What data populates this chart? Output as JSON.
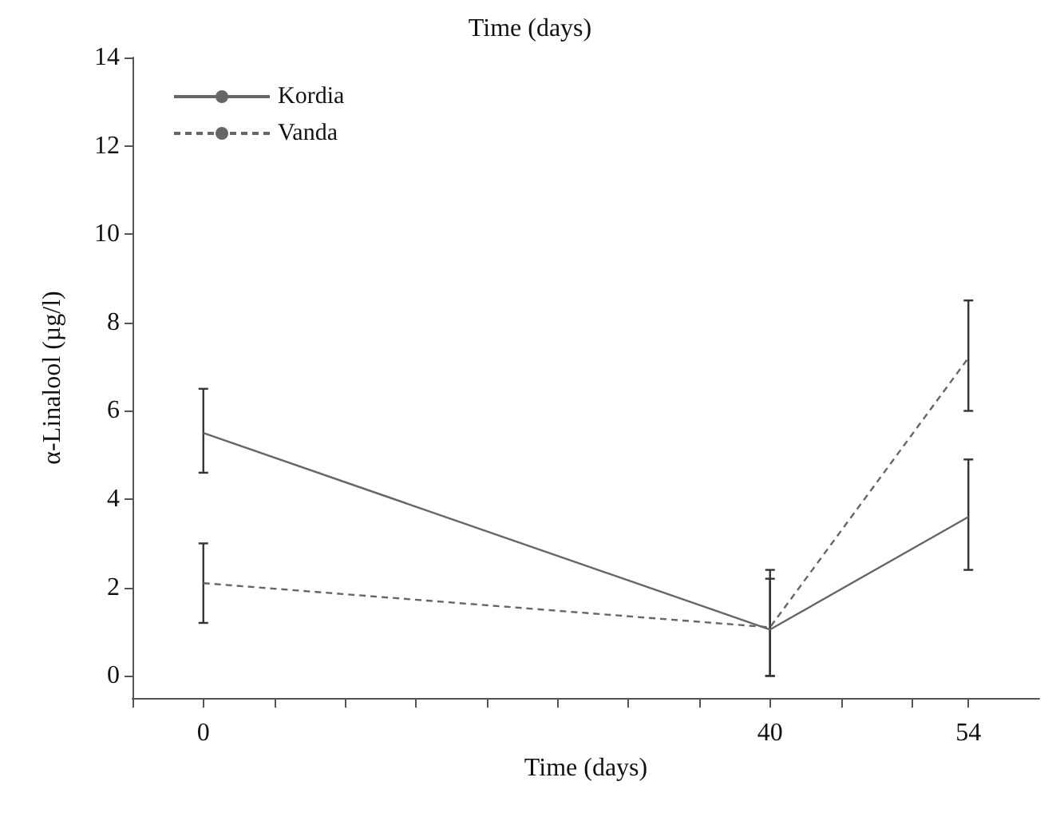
{
  "chart_data": {
    "type": "line",
    "xlabel": "Time (days)",
    "ylabel": "α-Linalool (µg/l)",
    "annotations": [
      "Time (days)"
    ],
    "x": [
      0,
      40,
      54
    ],
    "xlim": [
      -5,
      59
    ],
    "xticks": [
      {
        "value": -5,
        "label": null
      },
      0,
      {
        "value": 5,
        "label": null
      },
      {
        "value": 10,
        "label": null
      },
      {
        "value": 15,
        "label": null
      },
      {
        "value": 20,
        "label": null
      },
      {
        "value": 25,
        "label": null
      },
      {
        "value": 30,
        "label": null
      },
      {
        "value": 35,
        "label": null
      },
      40,
      {
        "value": 45,
        "label": null
      },
      {
        "value": 50,
        "label": null
      },
      54
    ],
    "ylim": [
      -0.5,
      14
    ],
    "yticks": [
      0,
      2,
      4,
      6,
      8,
      10,
      12,
      14
    ],
    "series": [
      {
        "name": "Kordia",
        "color": "#666666",
        "line_style": "solid",
        "values": [
          5.5,
          1.05,
          3.6
        ],
        "errors": [
          [
            4.6,
            6.5
          ],
          [
            0,
            2.2
          ],
          [
            2.4,
            4.9
          ]
        ]
      },
      {
        "name": "Vanda",
        "color": "#666666",
        "line_style": "dashed",
        "values": [
          2.1,
          1.1,
          7.2
        ],
        "errors": [
          [
            1.2,
            3.0
          ],
          [
            0,
            2.4
          ],
          [
            6.0,
            8.5
          ]
        ]
      }
    ],
    "marker": "none",
    "grid": false,
    "legend": "top left"
  }
}
